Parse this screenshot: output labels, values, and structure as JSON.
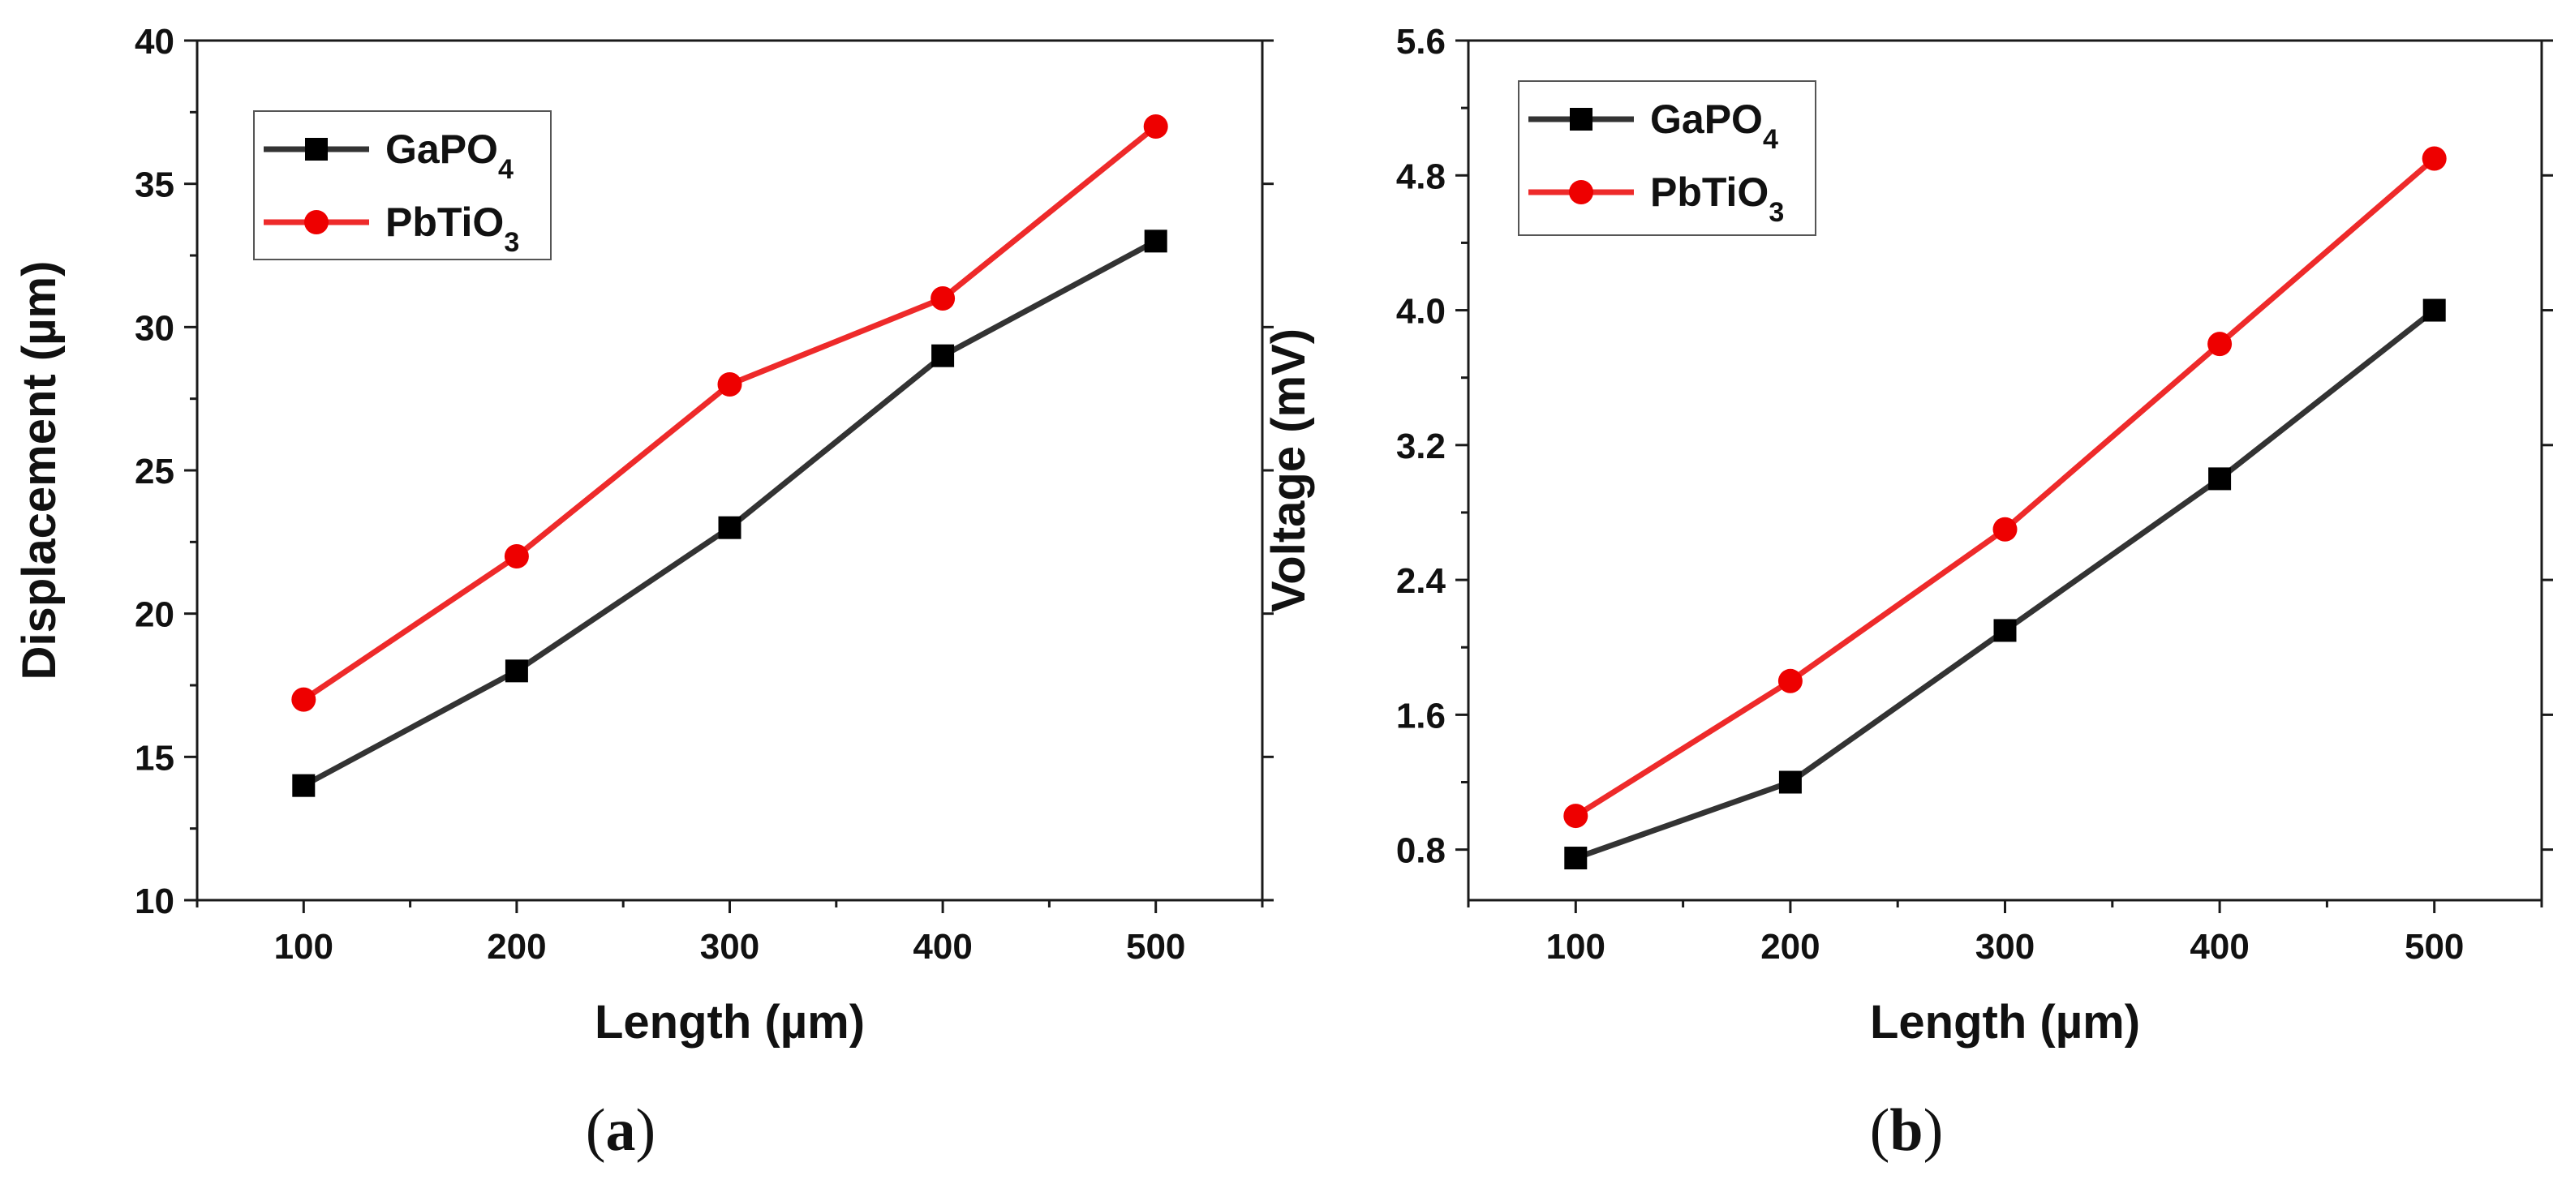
{
  "chart_data": [
    {
      "type": "line",
      "panel_label": "a",
      "xlabel": "Length (µm)",
      "ylabel": "Displacement (µm)",
      "xlim": [
        50,
        550
      ],
      "ylim": [
        10,
        40
      ],
      "xticks": [
        100,
        200,
        300,
        400,
        500
      ],
      "yticks": [
        10,
        15,
        20,
        25,
        30,
        35,
        40
      ],
      "legend_position": "top-left",
      "grid": false,
      "x": [
        100,
        200,
        300,
        400,
        500
      ],
      "series": [
        {
          "name": "GaPO4",
          "name_base": "GaPO",
          "name_sub": "4",
          "color": "#333333",
          "marker": "square",
          "values": [
            14,
            18,
            23,
            29,
            33
          ]
        },
        {
          "name": "PbTiO3",
          "name_base": "PbTiO",
          "name_sub": "3",
          "color": "#ee2a2a",
          "marker": "circle",
          "values": [
            17,
            22,
            28,
            31,
            37
          ]
        }
      ]
    },
    {
      "type": "line",
      "panel_label": "b",
      "xlabel": "Length (µm)",
      "ylabel": "Voltage (mV)",
      "xlim": [
        50,
        550
      ],
      "ylim": [
        0.5,
        5.6
      ],
      "xticks": [
        100,
        200,
        300,
        400,
        500
      ],
      "yticks": [
        0.8,
        1.6,
        2.4,
        3.2,
        4.0,
        4.8,
        5.6
      ],
      "ytick_labels": [
        "0.8",
        "1.6",
        "2.4",
        "3.2",
        "4.0",
        "4.8",
        "5.6"
      ],
      "legend_position": "top-left",
      "grid": false,
      "x": [
        100,
        200,
        300,
        400,
        500
      ],
      "series": [
        {
          "name": "GaPO4",
          "name_base": "GaPO",
          "name_sub": "4",
          "color": "#333333",
          "marker": "square",
          "values": [
            0.75,
            1.2,
            2.1,
            3.0,
            4.0
          ]
        },
        {
          "name": "PbTiO3",
          "name_base": "PbTiO",
          "name_sub": "3",
          "color": "#ee2a2a",
          "marker": "circle",
          "values": [
            1.0,
            1.8,
            2.7,
            3.8,
            4.9
          ]
        }
      ]
    }
  ]
}
